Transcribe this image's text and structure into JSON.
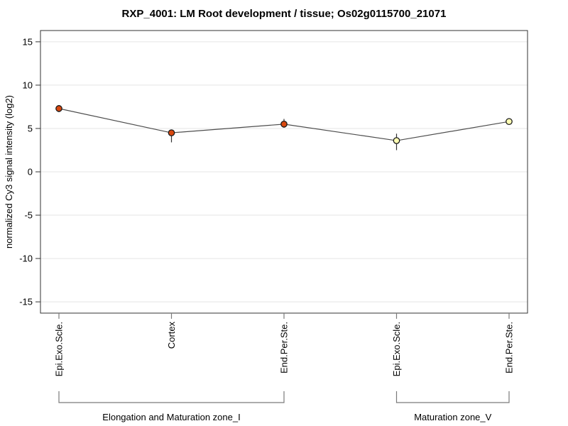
{
  "figure": {
    "title": "RXP_4001: LM Root development / tissue; Os02g0115700_21071"
  },
  "chart_data": {
    "type": "line",
    "title": "RXP_4001: LM Root development / tissue; Os02g0115700_21071",
    "xlabel": "",
    "ylabel": "normalized Cy3 signal intensity (log2)",
    "categories": [
      "Epi.Exo.Scle.",
      "Cortex",
      "End.Per.Ste.",
      "Epi.Exo.Scle.",
      "End.Per.Ste."
    ],
    "values": [
      7.3,
      4.5,
      5.5,
      3.6,
      5.8
    ],
    "error_low": [
      6.9,
      3.4,
      5.1,
      2.5,
      5.6
    ],
    "error_high": [
      7.7,
      4.8,
      6.1,
      4.4,
      5.9
    ],
    "yticks": [
      15,
      10,
      5,
      0,
      -5,
      -10,
      -15
    ],
    "ylim": [
      -16.3,
      16.3
    ],
    "grid": "horizontal",
    "legend_position": "none",
    "marker_colors": [
      "#d9480f",
      "#d9480f",
      "#d9480f",
      "#ffffb3",
      "#ffffb3"
    ],
    "marker_outline": "#1a1a1a",
    "line_color": "#4d4d4d",
    "error_bar_color": "#333333",
    "grid_color": "#e5e5e5",
    "box_color": "#333333",
    "bracket_color": "#7a7a7a",
    "groups": [
      {
        "label": "Elongation and Maturation zone_I",
        "start": 0,
        "end": 2
      },
      {
        "label": "Maturation zone_V",
        "start": 3,
        "end": 4
      }
    ]
  }
}
